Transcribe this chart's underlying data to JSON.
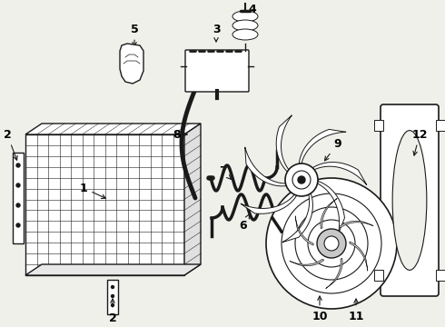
{
  "bg_color": "#f0f0eb",
  "line_color": "#1a1a1a",
  "label_color": "#000000",
  "label_fontsize": 9,
  "label_fontweight": "bold",
  "fig_w": 4.9,
  "fig_h": 3.6,
  "dpi": 100
}
